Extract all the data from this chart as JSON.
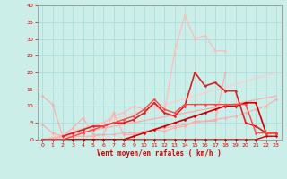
{
  "xlabel": "Vent moyen/en rafales ( km/h )",
  "background_color": "#cceee8",
  "grid_color": "#aadddd",
  "xlim": [
    -0.5,
    23.5
  ],
  "ylim": [
    0,
    40
  ],
  "xticks": [
    0,
    1,
    2,
    3,
    4,
    5,
    6,
    7,
    8,
    9,
    10,
    11,
    12,
    13,
    14,
    15,
    16,
    17,
    18,
    19,
    20,
    21,
    22,
    23
  ],
  "yticks": [
    0,
    5,
    10,
    15,
    20,
    25,
    30,
    35,
    40
  ],
  "series": [
    {
      "x": [
        0,
        1,
        2,
        3,
        4,
        5,
        6,
        7,
        8,
        9,
        10,
        11,
        12,
        13,
        14,
        15,
        16,
        17,
        18
      ],
      "y": [
        13,
        10.5,
        1.0,
        3.5,
        6.5,
        1.5,
        1.5,
        8.0,
        1.5,
        1.5,
        2.5,
        3.0,
        2.5,
        3.5,
        4.0,
        5.5,
        5.5,
        5.5,
        20
      ],
      "color": "#ffaaaa",
      "lw": 0.8,
      "marker": "D",
      "ms": 1.5
    },
    {
      "x": [
        0,
        1,
        2,
        3,
        4,
        5,
        6,
        7,
        8,
        9,
        10,
        11,
        12,
        13,
        14,
        15,
        16,
        17,
        18,
        19,
        20,
        21,
        22,
        23
      ],
      "y": [
        4.5,
        2.0,
        1.0,
        1.0,
        1.0,
        1.0,
        1.5,
        1.5,
        2.0,
        2.0,
        2.5,
        3.0,
        3.5,
        4.0,
        4.5,
        5.0,
        5.5,
        6.0,
        6.5,
        7.0,
        8.0,
        9.0,
        10.0,
        12.0
      ],
      "color": "#ffaaaa",
      "lw": 0.8,
      "marker": "D",
      "ms": 1.5
    },
    {
      "x": [
        0,
        1,
        2,
        3,
        4,
        5,
        6,
        7,
        8,
        9,
        10,
        11,
        12,
        13,
        14,
        15,
        16,
        17,
        18
      ],
      "y": [
        0,
        0,
        1,
        2,
        3,
        4,
        5,
        7,
        8,
        10,
        9,
        10,
        8,
        26,
        37,
        30,
        31,
        26.5,
        26.5
      ],
      "color": "#ffbbbb",
      "lw": 0.9,
      "marker": "D",
      "ms": 1.5
    },
    {
      "x": [
        0,
        23
      ],
      "y": [
        0,
        13
      ],
      "color": "#ffaaaa",
      "lw": 0.9,
      "marker": null,
      "ms": 0
    },
    {
      "x": [
        0,
        23
      ],
      "y": [
        0,
        20
      ],
      "color": "#ffcccc",
      "lw": 0.9,
      "marker": null,
      "ms": 0
    },
    {
      "x": [
        2,
        3,
        4,
        5,
        6,
        7,
        8,
        9,
        10,
        11,
        12,
        13,
        14,
        15,
        16,
        17,
        18,
        19,
        20,
        21,
        22,
        23
      ],
      "y": [
        1,
        2,
        3,
        4,
        4,
        5,
        5,
        6,
        8,
        11,
        8,
        7,
        10,
        20,
        16,
        17,
        14.5,
        14.5,
        5,
        4,
        2,
        2
      ],
      "color": "#dd2222",
      "lw": 1.2,
      "marker": "D",
      "ms": 1.5
    },
    {
      "x": [
        0,
        1,
        2,
        3,
        4,
        5,
        6,
        7,
        8,
        9,
        10,
        11,
        12,
        13,
        14,
        15,
        16,
        17,
        18,
        19,
        20,
        21,
        22,
        23
      ],
      "y": [
        0,
        0,
        0,
        0,
        0,
        0,
        0,
        0,
        0,
        1,
        2,
        3,
        4,
        5,
        6,
        7,
        8,
        9,
        10,
        10,
        11,
        11,
        2,
        2
      ],
      "color": "#cc0000",
      "lw": 1.2,
      "marker": "D",
      "ms": 1.5
    },
    {
      "x": [
        0,
        1,
        2,
        3,
        4,
        5,
        6,
        7,
        8,
        9,
        10,
        11,
        12,
        13,
        14,
        15,
        16,
        17,
        18,
        19,
        20,
        21,
        22,
        23
      ],
      "y": [
        0,
        0,
        0,
        0,
        0,
        0,
        0,
        0,
        0,
        0,
        0,
        0,
        0,
        0,
        0,
        0,
        0,
        0,
        0,
        0,
        0,
        0,
        1,
        1
      ],
      "color": "#cc0000",
      "lw": 1.0,
      "marker": "D",
      "ms": 1.5
    },
    {
      "x": [
        0,
        1,
        2,
        3,
        4,
        5,
        6,
        7,
        8,
        9,
        10,
        11,
        12,
        13,
        14,
        15,
        16,
        17,
        18,
        19,
        20,
        21,
        22,
        23
      ],
      "y": [
        0,
        0,
        0,
        1,
        2,
        3,
        4,
        5,
        6,
        7,
        9,
        12,
        9,
        8,
        10.5,
        10.5,
        10.5,
        10.5,
        10.5,
        10.5,
        10.5,
        2,
        2,
        2
      ],
      "color": "#ff4444",
      "lw": 1.0,
      "marker": "D",
      "ms": 1.5
    }
  ]
}
